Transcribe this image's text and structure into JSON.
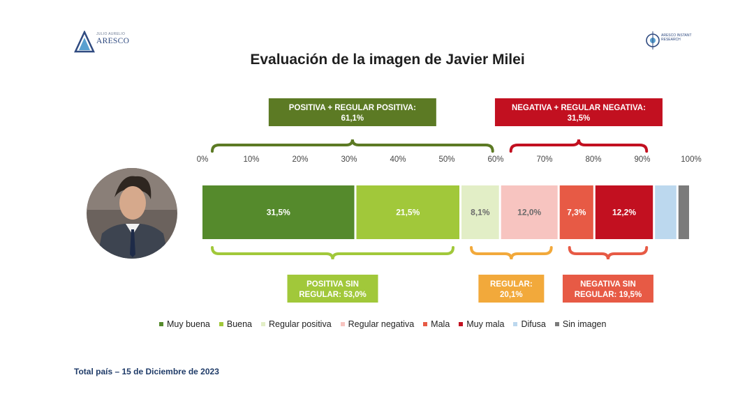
{
  "page": {
    "title": "Evaluación de la imagen de Javier Milei",
    "footer": "Total país – 15 de Diciembre de 2023"
  },
  "logos": {
    "left": {
      "small_text": "JULIO AURELIO",
      "name": "ARESCO",
      "icon": "triangle-logo-icon"
    },
    "right": {
      "text": "ARESCO INSTANT RESEARCH",
      "icon": "globe-logo-icon"
    }
  },
  "photo": {
    "icon": "person-portrait-icon"
  },
  "chart_data": {
    "type": "bar",
    "orientation": "horizontal-stacked-100",
    "xlim": [
      0,
      100
    ],
    "x_ticks": [
      "0%",
      "10%",
      "20%",
      "30%",
      "40%",
      "50%",
      "60%",
      "70%",
      "80%",
      "90%",
      "100%"
    ],
    "segments": [
      {
        "name": "Muy buena",
        "value": 31.5,
        "label": "31,5%",
        "color": "#558a2c",
        "label_color": "#ffffff"
      },
      {
        "name": "Buena",
        "value": 21.5,
        "label": "21,5%",
        "color": "#a1c83a",
        "label_color": "#ffffff"
      },
      {
        "name": "Regular positiva",
        "value": 8.1,
        "label": "8,1%",
        "color": "#e2eec6",
        "label_color": "#6a6a6a"
      },
      {
        "name": "Regular negativa",
        "value": 12.0,
        "label": "12,0%",
        "color": "#f7c4c0",
        "label_color": "#6a6a6a"
      },
      {
        "name": "Mala",
        "value": 7.3,
        "label": "7,3%",
        "color": "#e75a45",
        "label_color": "#ffffff"
      },
      {
        "name": "Muy mala",
        "value": 12.2,
        "label": "12,2%",
        "color": "#c21020",
        "label_color": "#ffffff"
      },
      {
        "name": "Difusa",
        "value": 4.8,
        "label": "",
        "color": "#bcd8ee",
        "label_color": "#ffffff"
      },
      {
        "name": "Sin imagen",
        "value": 2.6,
        "label": "",
        "color": "#7b7b7b",
        "label_color": "#ffffff"
      }
    ],
    "top_groups": [
      {
        "line1": "POSITIVA + REGULAR POSITIVA:",
        "line2": "61,1%",
        "from": 0,
        "to": 61.1,
        "color": "#5c7a24"
      },
      {
        "line1": "NEGATIVA + REGULAR NEGATIVA:",
        "line2": "31,5%",
        "from": 61.1,
        "to": 92.6,
        "color": "#c21020"
      }
    ],
    "bottom_groups": [
      {
        "line1": "POSITIVA SIN",
        "line2": "REGULAR: 53,0%",
        "from": 0,
        "to": 53.0,
        "color": "#a1c83a"
      },
      {
        "line1": "REGULAR:",
        "line2": "20,1%",
        "from": 53.0,
        "to": 73.1,
        "color": "#f2a93b"
      },
      {
        "line1": "NEGATIVA SIN",
        "line2": "REGULAR: 19,5%",
        "from": 73.1,
        "to": 92.6,
        "color": "#e75a45"
      }
    ],
    "legend": [
      {
        "label": "Muy buena",
        "color": "#558a2c"
      },
      {
        "label": "Buena",
        "color": "#a1c83a"
      },
      {
        "label": "Regular positiva",
        "color": "#e2eec6"
      },
      {
        "label": "Regular negativa",
        "color": "#f7c4c0"
      },
      {
        "label": "Mala",
        "color": "#e75a45"
      },
      {
        "label": "Muy mala",
        "color": "#c21020"
      },
      {
        "label": "Difusa",
        "color": "#bcd8ee"
      },
      {
        "label": "Sin imagen",
        "color": "#7b7b7b"
      }
    ]
  }
}
